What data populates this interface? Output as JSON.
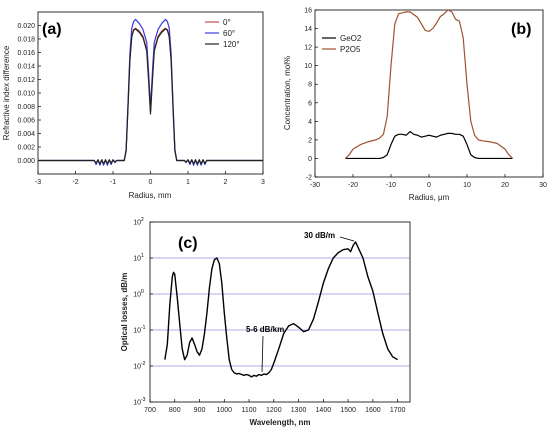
{
  "chart_data": [
    {
      "panel": "(a)",
      "type": "line",
      "title": "",
      "xlabel": "Radius, mm",
      "ylabel": "Refractive index difference",
      "xlim": [
        -3,
        3
      ],
      "ylim": [
        -0.002,
        0.022
      ],
      "xticks": [
        "-3",
        "-2",
        "-1",
        "0",
        "1",
        "2",
        "3"
      ],
      "yticks": [
        "0.000",
        "0.002",
        "0.004",
        "0.006",
        "0.008",
        "0.010",
        "0.012",
        "0.014",
        "0.016",
        "0.018",
        "0.020"
      ],
      "legend_position": "top-right",
      "grid": false,
      "series": [
        {
          "name": "0°",
          "color": "#c0504d",
          "x": [
            -3,
            -1.6,
            -1.5,
            -1.45,
            -1.4,
            -1.35,
            -1.3,
            -1.25,
            -1.2,
            -1.15,
            -1.1,
            -1.05,
            -1.0,
            -0.95,
            -0.9,
            -0.8,
            -0.7,
            -0.65,
            -0.6,
            -0.55,
            -0.5,
            -0.45,
            -0.4,
            -0.3,
            -0.2,
            -0.1,
            -0.05,
            0,
            0.05,
            0.1,
            0.2,
            0.3,
            0.4,
            0.45,
            0.5,
            0.55,
            0.6,
            0.65,
            0.7,
            0.8,
            0.9,
            0.95,
            1.0,
            1.05,
            1.1,
            1.15,
            1.2,
            1.25,
            1.3,
            1.35,
            1.4,
            1.45,
            1.5,
            1.6,
            3
          ],
          "y": [
            0,
            0,
            0,
            -0.0005,
            0.0001,
            -0.0006,
            0.0001,
            -0.0006,
            0.0001,
            -0.0006,
            0.0001,
            -0.0005,
            0.0001,
            -0.0003,
            0,
            0,
            0,
            0.0015,
            0.008,
            0.015,
            0.0185,
            0.0194,
            0.0196,
            0.0192,
            0.0184,
            0.0165,
            0.012,
            0.0072,
            0.012,
            0.0165,
            0.0184,
            0.0192,
            0.0196,
            0.0194,
            0.0185,
            0.015,
            0.008,
            0.0015,
            0,
            0,
            0,
            -0.0003,
            0.0001,
            -0.0005,
            0.0001,
            -0.0006,
            0.0001,
            -0.0006,
            0.0001,
            -0.0006,
            0.0001,
            -0.0005,
            0,
            0,
            0
          ]
        },
        {
          "name": "60°",
          "color": "#3a3adb",
          "x": [
            -3,
            -1.6,
            -1.5,
            -1.45,
            -1.4,
            -1.35,
            -1.3,
            -1.25,
            -1.2,
            -1.15,
            -1.1,
            -1.05,
            -1.0,
            -0.95,
            -0.9,
            -0.8,
            -0.7,
            -0.65,
            -0.6,
            -0.55,
            -0.5,
            -0.45,
            -0.4,
            -0.3,
            -0.2,
            -0.1,
            -0.05,
            0,
            0.05,
            0.1,
            0.2,
            0.3,
            0.4,
            0.45,
            0.5,
            0.55,
            0.6,
            0.65,
            0.7,
            0.8,
            0.9,
            0.95,
            1.0,
            1.05,
            1.1,
            1.15,
            1.2,
            1.25,
            1.3,
            1.35,
            1.4,
            1.45,
            1.5,
            1.6,
            3
          ],
          "y": [
            0,
            0,
            0,
            -0.0006,
            0.0001,
            -0.0007,
            0.0001,
            -0.0007,
            0.0001,
            -0.0007,
            0.0001,
            -0.0006,
            0.0001,
            -0.0003,
            0,
            0,
            0,
            0.0017,
            0.0085,
            0.0158,
            0.0196,
            0.0206,
            0.0209,
            0.0203,
            0.0194,
            0.0175,
            0.013,
            0.0078,
            0.013,
            0.0175,
            0.0194,
            0.0203,
            0.0209,
            0.0206,
            0.0196,
            0.0158,
            0.0085,
            0.0017,
            0,
            0,
            0,
            -0.0003,
            0.0001,
            -0.0006,
            0.0001,
            -0.0007,
            0.0001,
            -0.0007,
            0.0001,
            -0.0007,
            0.0001,
            -0.0006,
            0,
            0,
            0
          ]
        },
        {
          "name": "120°",
          "color": "#222222",
          "x": [
            -3,
            -1.6,
            -1.5,
            -1.45,
            -1.4,
            -1.35,
            -1.3,
            -1.25,
            -1.2,
            -1.15,
            -1.1,
            -1.05,
            -1.0,
            -0.95,
            -0.9,
            -0.8,
            -0.7,
            -0.65,
            -0.6,
            -0.55,
            -0.5,
            -0.45,
            -0.4,
            -0.3,
            -0.2,
            -0.1,
            -0.05,
            0,
            0.05,
            0.1,
            0.2,
            0.3,
            0.4,
            0.45,
            0.5,
            0.55,
            0.6,
            0.65,
            0.7,
            0.8,
            0.9,
            0.95,
            1.0,
            1.05,
            1.1,
            1.15,
            1.2,
            1.25,
            1.3,
            1.35,
            1.4,
            1.45,
            1.5,
            1.6,
            3
          ],
          "y": [
            0,
            0,
            0,
            -0.0004,
            0.0001,
            -0.0005,
            0.0001,
            -0.0005,
            0.0001,
            -0.0005,
            0.0001,
            -0.0004,
            0.0001,
            -0.0002,
            0,
            0,
            0,
            0.0014,
            0.0078,
            0.0148,
            0.0183,
            0.0193,
            0.0195,
            0.019,
            0.0182,
            0.0162,
            0.0118,
            0.0069,
            0.0118,
            0.0162,
            0.0182,
            0.019,
            0.0195,
            0.0193,
            0.0183,
            0.0148,
            0.0078,
            0.0014,
            0,
            0,
            0,
            -0.0002,
            0.0001,
            -0.0004,
            0.0001,
            -0.0005,
            0.0001,
            -0.0005,
            0.0001,
            -0.0005,
            0.0001,
            -0.0004,
            0,
            0,
            0
          ]
        }
      ]
    },
    {
      "panel": "(b)",
      "type": "line",
      "title": "",
      "xlabel": "Radius, μm",
      "ylabel": "Concentration, mol%",
      "xlim": [
        -30,
        30
      ],
      "ylim": [
        -2,
        16
      ],
      "xticks": [
        "-30",
        "-20",
        "-10",
        "0",
        "10",
        "20",
        "30"
      ],
      "yticks": [
        "-2",
        "0",
        "2",
        "4",
        "6",
        "8",
        "10",
        "12",
        "14",
        "16"
      ],
      "legend_position": "top-left",
      "grid": false,
      "series": [
        {
          "name": "GeO2",
          "color": "#000000",
          "x": [
            -22,
            -18,
            -14,
            -13,
            -12,
            -11,
            -10,
            -9,
            -8,
            -7,
            -6,
            -5,
            -4,
            -3,
            -2,
            -1,
            0,
            1,
            2,
            3,
            4,
            5,
            6,
            7,
            8,
            9,
            10,
            11,
            12,
            13,
            14,
            18,
            22
          ],
          "y": [
            0,
            0,
            0,
            0,
            0.1,
            0.4,
            1.5,
            2.4,
            2.6,
            2.6,
            2.5,
            2.9,
            2.6,
            2.5,
            2.3,
            2.4,
            2.5,
            2.4,
            2.3,
            2.5,
            2.6,
            2.7,
            2.7,
            2.6,
            2.6,
            2.4,
            1.5,
            0.4,
            0.1,
            0,
            0,
            0,
            0
          ]
        },
        {
          "name": "P2O5",
          "color": "#a0522d",
          "x": [
            -22,
            -21,
            -20,
            -18,
            -16,
            -14,
            -13,
            -12,
            -11,
            -10,
            -9,
            -8,
            -7,
            -6,
            -5,
            -4,
            -3,
            -2,
            -1,
            0,
            1,
            2,
            3,
            4,
            5,
            6,
            7,
            8,
            9,
            10,
            11,
            12,
            13,
            14,
            16,
            18,
            20,
            21,
            22
          ],
          "y": [
            0,
            0.4,
            1.0,
            1.5,
            1.8,
            2.0,
            2.2,
            2.6,
            4.5,
            10,
            14.5,
            15.6,
            15.7,
            15.8,
            15.8,
            15.5,
            15.2,
            14.5,
            13.8,
            13.7,
            14.0,
            14.6,
            15.3,
            15.6,
            16.0,
            15.8,
            15.0,
            14.8,
            13.0,
            8,
            4.0,
            2.5,
            2.0,
            1.9,
            1.8,
            1.6,
            1.0,
            0.4,
            0
          ]
        }
      ]
    },
    {
      "panel": "(c)",
      "type": "line",
      "title": "",
      "xlabel": "Wavelength, nm",
      "ylabel": "Optical losses, dB/m",
      "xlim": [
        700,
        1750
      ],
      "ylog": true,
      "ylim": [
        0.001,
        100
      ],
      "xticks": [
        "700",
        "800",
        "900",
        "1000",
        "1100",
        "1200",
        "1300",
        "1400",
        "1500",
        "1600",
        "1700"
      ],
      "yticks": [
        {
          "base": "10",
          "exp": "-3"
        },
        {
          "base": "10",
          "exp": "-2"
        },
        {
          "base": "10",
          "exp": "-1"
        },
        {
          "base": "10",
          "exp": "0"
        },
        {
          "base": "10",
          "exp": "1"
        },
        {
          "base": "10",
          "exp": "2"
        }
      ],
      "grid": true,
      "annotations": [
        "30 dB/m",
        "5-6 dB/km"
      ],
      "series": [
        {
          "color": "#000000",
          "x": [
            760,
            770,
            780,
            790,
            795,
            800,
            810,
            820,
            830,
            840,
            850,
            860,
            870,
            880,
            890,
            900,
            910,
            920,
            930,
            940,
            950,
            960,
            970,
            980,
            990,
            1000,
            1010,
            1020,
            1030,
            1040,
            1050,
            1060,
            1070,
            1080,
            1090,
            1100,
            1110,
            1120,
            1130,
            1140,
            1150,
            1160,
            1170,
            1180,
            1190,
            1200,
            1220,
            1240,
            1260,
            1280,
            1300,
            1320,
            1340,
            1360,
            1380,
            1400,
            1420,
            1440,
            1460,
            1480,
            1500,
            1510,
            1520,
            1530,
            1540,
            1560,
            1580,
            1600,
            1620,
            1640,
            1660,
            1680,
            1700
          ],
          "y": [
            0.015,
            0.04,
            0.5,
            3,
            4,
            3.5,
            0.8,
            0.15,
            0.03,
            0.015,
            0.02,
            0.045,
            0.06,
            0.04,
            0.025,
            0.02,
            0.03,
            0.08,
            0.3,
            1.5,
            5,
            9,
            10,
            7,
            2,
            0.3,
            0.06,
            0.015,
            0.008,
            0.0065,
            0.006,
            0.0062,
            0.0058,
            0.0055,
            0.0058,
            0.0055,
            0.005,
            0.0055,
            0.0052,
            0.0058,
            0.0055,
            0.006,
            0.0058,
            0.0065,
            0.008,
            0.012,
            0.03,
            0.08,
            0.13,
            0.15,
            0.12,
            0.09,
            0.1,
            0.2,
            0.6,
            2,
            5,
            10,
            14,
            17,
            18,
            15,
            22,
            28,
            20,
            10,
            3,
            1.2,
            0.3,
            0.08,
            0.03,
            0.018,
            0.015
          ]
        }
      ]
    }
  ]
}
